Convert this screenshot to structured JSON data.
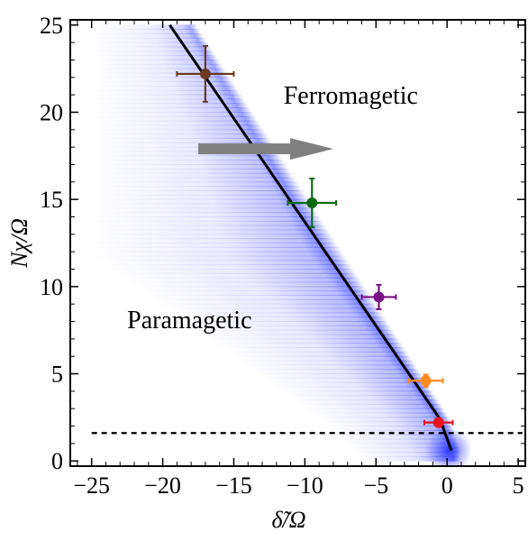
{
  "chart_data": {
    "type": "scatter",
    "title": "",
    "xlabel": "δ̃/Ω",
    "ylabel": "Nχ/Ω",
    "xlim": [
      -26.5,
      5.5
    ],
    "ylim": [
      -0.3,
      25.3
    ],
    "xticks": [
      -25,
      -20,
      -15,
      -10,
      -5,
      0,
      5
    ],
    "yticks": [
      0,
      5,
      10,
      15,
      20,
      25
    ],
    "xtick_labels": [
      "−25",
      "−20",
      "−15",
      "−10",
      "−5",
      "0",
      "5"
    ],
    "ytick_labels": [
      "0",
      "5",
      "10",
      "15",
      "20",
      "25"
    ],
    "grid": false,
    "legend": "none",
    "annotations": [
      {
        "text": "Ferromagetic"
      },
      {
        "text": "Paramagetic"
      }
    ],
    "arrow": {
      "from": [
        -17.5,
        17.9
      ],
      "to": [
        -8,
        17.9
      ],
      "color": "#808080"
    },
    "boundary_line": {
      "x": [
        -19.5,
        -0.5,
        0.3
      ],
      "y": [
        25.0,
        2.4,
        0.6
      ],
      "color": "#000000"
    },
    "threshold_line": {
      "y": 1.6,
      "style": "dashed",
      "color": "#000000"
    },
    "background_gradient": {
      "color": "#5a64ff",
      "description_peak_along_boundary": true
    },
    "points": [
      {
        "x": -17.0,
        "y": 22.2,
        "xerr": 2.0,
        "yerr": 1.6,
        "color": "#6b3a1f"
      },
      {
        "x": -9.5,
        "y": 14.8,
        "xerr": 1.7,
        "yerr": 1.4,
        "color": "#0a6a12"
      },
      {
        "x": -4.8,
        "y": 9.4,
        "xerr": 1.2,
        "yerr": 0.7,
        "color": "#7a1085"
      },
      {
        "x": -1.5,
        "y": 4.6,
        "xerr": 1.2,
        "yerr": 0.35,
        "color": "#ff8a1e"
      },
      {
        "x": -0.6,
        "y": 2.2,
        "xerr": 1.0,
        "yerr": 0.25,
        "color": "#e8141e"
      }
    ]
  }
}
